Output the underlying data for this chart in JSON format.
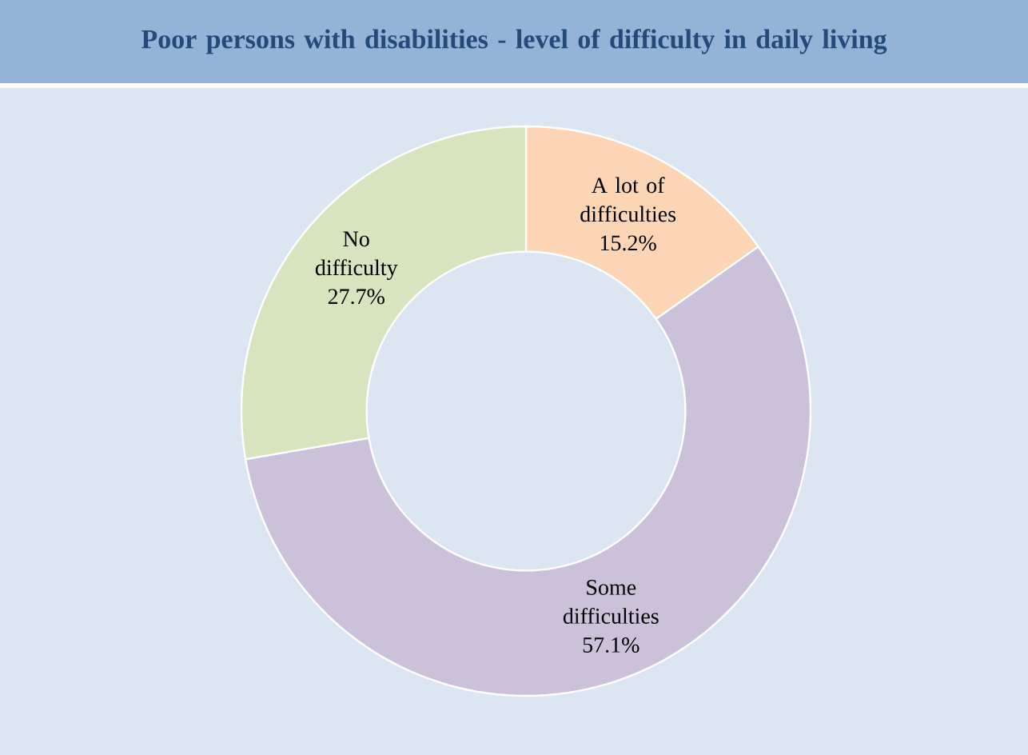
{
  "chart_data": {
    "type": "donut",
    "title": "Poor persons with disabilities - level of difficulty in daily living",
    "categories": [
      "A lot of difficulties",
      "Some difficulties",
      "No difficulty"
    ],
    "values": [
      15.2,
      57.1,
      27.7
    ],
    "value_labels": [
      "15.2%",
      "57.1%",
      "27.7%"
    ],
    "colors": [
      "#fcd5b5",
      "#ccc1da",
      "#d7e4bd"
    ]
  }
}
